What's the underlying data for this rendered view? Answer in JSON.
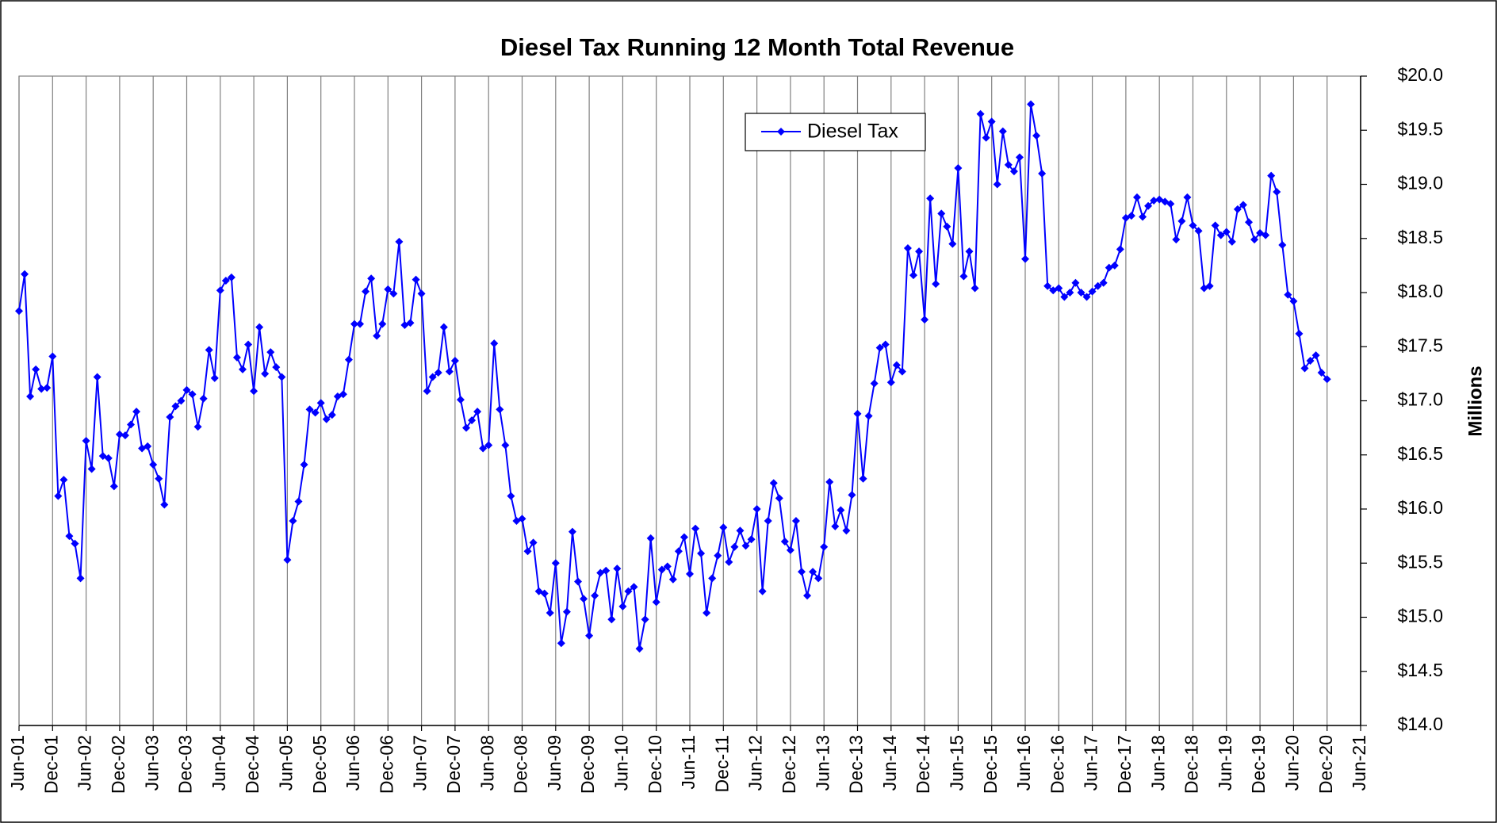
{
  "chart_data": {
    "type": "line",
    "title": "Diesel Tax Running 12 Month Total Revenue",
    "y_axis_label": "Millions",
    "categories": [
      "Jun-01",
      null,
      null,
      null,
      null,
      null,
      "Dec-01",
      null,
      null,
      null,
      null,
      null,
      "Jun-02",
      null,
      null,
      null,
      null,
      null,
      "Dec-02",
      null,
      null,
      null,
      null,
      null,
      "Jun-03",
      null,
      null,
      null,
      null,
      null,
      "Dec-03",
      null,
      null,
      null,
      null,
      null,
      "Jun-04",
      null,
      null,
      null,
      null,
      null,
      "Dec-04",
      null,
      null,
      null,
      null,
      null,
      "Jun-05",
      null,
      null,
      null,
      null,
      null,
      "Dec-05",
      null,
      null,
      null,
      null,
      null,
      "Jun-06",
      null,
      null,
      null,
      null,
      null,
      "Dec-06",
      null,
      null,
      null,
      null,
      null,
      "Jun-07",
      null,
      null,
      null,
      null,
      null,
      "Dec-07",
      null,
      null,
      null,
      null,
      null,
      "Jun-08",
      null,
      null,
      null,
      null,
      null,
      "Dec-08",
      null,
      null,
      null,
      null,
      null,
      "Jun-09",
      null,
      null,
      null,
      null,
      null,
      "Dec-09",
      null,
      null,
      null,
      null,
      null,
      "Jun-10",
      null,
      null,
      null,
      null,
      null,
      "Dec-10",
      null,
      null,
      null,
      null,
      null,
      "Jun-11",
      null,
      null,
      null,
      null,
      null,
      "Dec-11",
      null,
      null,
      null,
      null,
      null,
      "Jun-12",
      null,
      null,
      null,
      null,
      null,
      "Dec-12",
      null,
      null,
      null,
      null,
      null,
      "Jun-13",
      null,
      null,
      null,
      null,
      null,
      "Dec-13",
      null,
      null,
      null,
      null,
      null,
      "Jun-14",
      null,
      null,
      null,
      null,
      null,
      "Dec-14",
      null,
      null,
      null,
      null,
      null,
      "Jun-15",
      null,
      null,
      null,
      null,
      null,
      "Dec-15",
      null,
      null,
      null,
      null,
      null,
      "Jun-16",
      null,
      null,
      null,
      null,
      null,
      "Dec-16",
      null,
      null,
      null,
      null,
      null,
      "Jun-17",
      null,
      null,
      null,
      null,
      null,
      "Dec-17",
      null,
      null,
      null,
      null,
      null,
      "Jun-18",
      null,
      null,
      null,
      null,
      null,
      "Dec-18",
      null,
      null,
      null,
      null,
      null,
      "Jun-19",
      null,
      null,
      null,
      null,
      null,
      "Dec-19",
      null,
      null,
      null,
      null,
      null,
      "Jun-20",
      null,
      null,
      null,
      null,
      null,
      "Dec-20",
      null,
      null,
      null,
      null,
      null,
      "Jun-21"
    ],
    "series": [
      {
        "name": "Diesel Tax",
        "color": "#0000ff",
        "values": [
          17.83,
          18.17,
          17.04,
          17.29,
          17.11,
          17.12,
          17.41,
          16.12,
          16.27,
          15.75,
          15.68,
          15.36,
          16.63,
          16.37,
          17.22,
          16.49,
          16.47,
          16.21,
          16.69,
          16.68,
          16.78,
          16.9,
          16.56,
          16.58,
          16.41,
          16.28,
          16.04,
          16.85,
          16.95,
          17.0,
          17.1,
          17.06,
          16.76,
          17.02,
          17.47,
          17.21,
          18.02,
          18.11,
          18.14,
          17.4,
          17.29,
          17.52,
          17.09,
          17.68,
          17.25,
          17.45,
          17.31,
          17.22,
          15.53,
          15.89,
          16.07,
          16.41,
          16.92,
          16.89,
          16.98,
          16.83,
          16.87,
          17.04,
          17.06,
          17.38,
          17.71,
          17.71,
          18.01,
          18.13,
          17.6,
          17.71,
          18.03,
          17.99,
          18.47,
          17.7,
          17.72,
          18.12,
          17.99,
          17.09,
          17.22,
          17.26,
          17.68,
          17.27,
          17.37,
          17.01,
          16.75,
          16.82,
          16.9,
          16.56,
          16.59,
          17.53,
          16.92,
          16.59,
          16.12,
          15.89,
          15.91,
          15.61,
          15.69,
          15.24,
          15.22,
          15.04,
          15.5,
          14.76,
          15.05,
          15.79,
          15.33,
          15.17,
          14.83,
          15.2,
          15.41,
          15.43,
          14.98,
          15.45,
          15.1,
          15.24,
          15.28,
          14.71,
          14.98,
          15.73,
          15.14,
          15.44,
          15.47,
          15.35,
          15.61,
          15.74,
          15.4,
          15.82,
          15.59,
          15.04,
          15.36,
          15.57,
          15.83,
          15.51,
          15.65,
          15.8,
          15.66,
          15.72,
          16.0,
          15.24,
          15.89,
          16.24,
          16.1,
          15.7,
          15.62,
          15.89,
          15.42,
          15.2,
          15.42,
          15.36,
          15.65,
          16.25,
          15.84,
          15.99,
          15.8,
          16.13,
          16.88,
          16.28,
          16.86,
          17.16,
          17.49,
          17.52,
          17.17,
          17.33,
          17.27,
          18.41,
          18.16,
          18.38,
          17.75,
          18.87,
          18.08,
          18.73,
          18.61,
          18.45,
          19.15,
          18.15,
          18.38,
          18.04,
          19.65,
          19.43,
          19.58,
          19.0,
          19.49,
          19.18,
          19.12,
          19.25,
          18.31,
          19.74,
          19.45,
          19.1,
          18.06,
          18.02,
          18.04,
          17.96,
          18.0,
          18.09,
          18.0,
          17.96,
          18.01,
          18.06,
          18.09,
          18.23,
          18.25,
          18.4,
          18.69,
          18.71,
          18.88,
          18.7,
          18.8,
          18.85,
          18.86,
          18.84,
          18.82,
          18.49,
          18.66,
          18.88,
          18.62,
          18.57,
          18.04,
          18.06,
          18.62,
          18.53,
          18.56,
          18.47,
          18.77,
          18.81,
          18.65,
          18.49,
          18.55,
          18.53,
          19.08,
          18.93,
          18.44,
          17.98,
          17.92,
          17.62,
          17.3,
          17.37,
          17.42,
          17.26,
          17.2,
          null,
          null,
          null,
          null,
          null,
          null
        ]
      }
    ],
    "ylim": [
      14,
      20
    ],
    "yticks": [
      {
        "value": 14,
        "label": "$14.0"
      },
      {
        "value": 14.5,
        "label": "$14.5"
      },
      {
        "value": 15,
        "label": "$15.0"
      },
      {
        "value": 15.5,
        "label": "$15.5"
      },
      {
        "value": 16,
        "label": "$16.0"
      },
      {
        "value": 16.5,
        "label": "$16.5"
      },
      {
        "value": 17,
        "label": "$17.0"
      },
      {
        "value": 17.5,
        "label": "$17.5"
      },
      {
        "value": 18,
        "label": "$18.0"
      },
      {
        "value": 18.5,
        "label": "$18.5"
      },
      {
        "value": 19,
        "label": "$19.0"
      },
      {
        "value": 19.5,
        "label": "$19.5"
      },
      {
        "value": 20,
        "label": "$20.0"
      }
    ],
    "y_axis_side": "right",
    "grid": "x",
    "legend": "top"
  }
}
